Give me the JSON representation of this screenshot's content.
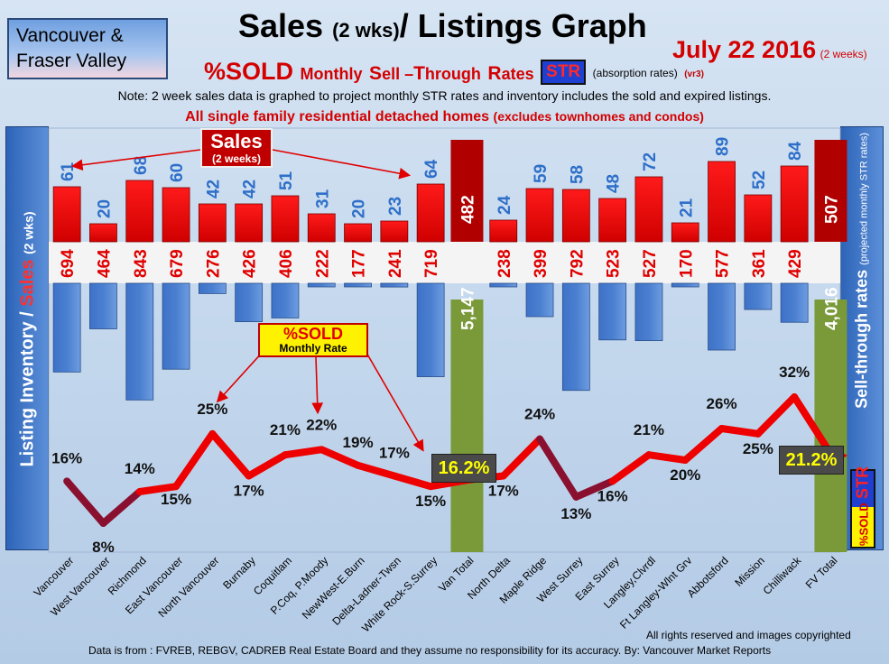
{
  "header": {
    "region_line1": "Vancouver &",
    "region_line2": "Fraser Valley",
    "title_main": "Sales",
    "title_small": "(2 wks)",
    "title_rest": "/ Listings Graph",
    "date": "July 22 2016",
    "date_note": "(2 weeks)",
    "sub_sold": "%SOLD",
    "sub_monthly": "Monthly",
    "sub_s": "S",
    "sub_ell": "ell –",
    "sub_t": "T",
    "sub_hrough": "hrough",
    "sub_r": "R",
    "sub_ates": "ates",
    "sub_str": "STR",
    "sub_absorption": "(absorption rates)",
    "sub_version": "(vr3)",
    "note": "Note: 2 week sales data is graphed to project monthly STR rates and inventory includes the sold and expired listings.",
    "homes_main": "All single family residential detached homes",
    "homes_excl": "(excludes townhomes and condos)"
  },
  "left_axis": {
    "text1": "Listing Inventory / ",
    "text2": "Sales",
    "text3": "(2 wks)"
  },
  "right_axis": {
    "text1": "Sell-through rates",
    "text2": "(projected monthly STR rates)",
    "badge_str": "STR",
    "badge_sold": "%SOLD"
  },
  "callouts": {
    "sales_title": "Sales",
    "sales_sub": "(2 weeks)",
    "sold_title": "%SOLD",
    "sold_sub": "Monthly Rate"
  },
  "footer": {
    "rights": "All rights reserved and  images copyrighted",
    "source": "Data is from : FVREB, REBGV, CADREB Real Estate Board and they assume no responsibility for its accuracy. By: Vancouver Market Reports"
  },
  "chart_data": {
    "type": "bar",
    "categories": [
      "Vancouver",
      "West Vancouver",
      "Richmond",
      "East Vancouver",
      "North Vancouver",
      "Burnaby",
      "Coquitlam",
      "P.Coq, P.Moody",
      "NewWest-E.Burn",
      "Delta-Ladner-Twsn",
      "White Rock-S.Surrey",
      "Van Total",
      "North Delta",
      "Maple Ridge",
      "West Surrey",
      "East Surrey",
      "Langley,Clvrdl",
      "Ft Langley-Wlnt Grv",
      "Abbotsford",
      "Mission",
      "Chilliwack",
      "FV Total"
    ],
    "series": [
      {
        "name": "Sales",
        "values": [
          61,
          20,
          68,
          60,
          42,
          42,
          51,
          31,
          20,
          23,
          64,
          482,
          24,
          59,
          58,
          48,
          72,
          21,
          89,
          52,
          84,
          507
        ],
        "color": "#ee0000"
      },
      {
        "name": "Listing Inventory",
        "values": [
          694,
          464,
          843,
          679,
          276,
          426,
          406,
          222,
          177,
          241,
          719,
          5147,
          238,
          399,
          792,
          523,
          527,
          170,
          577,
          361,
          429,
          4016
        ],
        "color": "#4a7fd0"
      },
      {
        "name": "%SOLD",
        "values": [
          16,
          8,
          14,
          15,
          25,
          17,
          21,
          22,
          19,
          17,
          15,
          16.2,
          17,
          24,
          13,
          16,
          21,
          20,
          26,
          25,
          32,
          21.2
        ],
        "color": "#ee0000"
      }
    ],
    "sales_labels": [
      "61",
      "20",
      "68",
      "60",
      "42",
      "42",
      "51",
      "31",
      "20",
      "23",
      "64",
      "482",
      "24",
      "59",
      "58",
      "48",
      "72",
      "21",
      "89",
      "52",
      "84",
      "507"
    ],
    "inventory_labels": [
      "694",
      "464",
      "843",
      "679",
      "276",
      "426",
      "406",
      "222",
      "177",
      "241",
      "719",
      "5,147",
      "238",
      "399",
      "792",
      "523",
      "527",
      "170",
      "577",
      "361",
      "429",
      "4,016"
    ],
    "str_labels": [
      "16%",
      "8%",
      "14%",
      "15%",
      "25%",
      "17%",
      "21%",
      "22%",
      "19%",
      "17%",
      "15%",
      "16.2%",
      "17%",
      "24%",
      "13%",
      "16%",
      "21%",
      "20%",
      "26%",
      "25%",
      "32%",
      "21.2%"
    ],
    "totals": [
      "Van Total",
      "FV Total"
    ],
    "total_color": "#7a9a3a",
    "legend": "none"
  }
}
